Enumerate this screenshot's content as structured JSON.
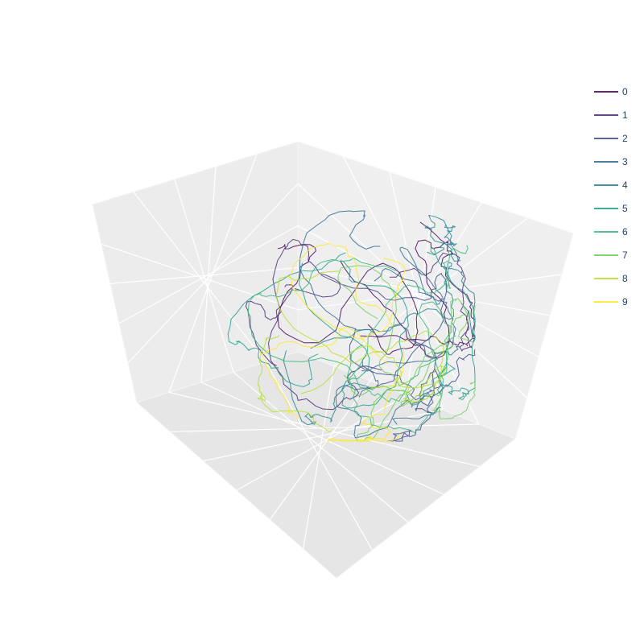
{
  "chart_data": {
    "type": "line3d",
    "colorscale": "viridis",
    "scene": {
      "background": "#e5e5e5",
      "gridcolor": "#ffffff",
      "grid": true,
      "axes_visible_titles": false,
      "camera": "default-oblique"
    },
    "legend": {
      "placement": "right-top"
    },
    "series": [
      {
        "name": "0",
        "color": "#440154"
      },
      {
        "name": "1",
        "color": "#482878"
      },
      {
        "name": "2",
        "color": "#3e4989"
      },
      {
        "name": "3",
        "color": "#31688e"
      },
      {
        "name": "4",
        "color": "#26828e"
      },
      {
        "name": "5",
        "color": "#1f9e89"
      },
      {
        "name": "6",
        "color": "#35b779"
      },
      {
        "name": "7",
        "color": "#6ece58"
      },
      {
        "name": "8",
        "color": "#b5de2b"
      },
      {
        "name": "9",
        "color": "#fde725"
      }
    ]
  }
}
